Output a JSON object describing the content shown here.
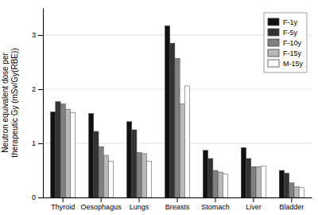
{
  "chart_data": {
    "type": "bar",
    "categories": [
      "Thyroid",
      "Oesophagus",
      "Lungs",
      "Breasts",
      "Stomach",
      "Liver",
      "Bladder"
    ],
    "series": [
      {
        "name": "F-1y",
        "color": "#111111",
        "values": [
          1.58,
          1.55,
          1.4,
          3.17,
          0.87,
          0.92,
          0.5
        ]
      },
      {
        "name": "F-5y",
        "color": "#333333",
        "values": [
          1.77,
          1.22,
          1.25,
          2.85,
          0.72,
          0.72,
          0.45
        ]
      },
      {
        "name": "F-10y",
        "color": "#808080",
        "values": [
          1.73,
          0.94,
          0.83,
          2.57,
          0.5,
          0.57,
          0.27
        ]
      },
      {
        "name": "F-15y",
        "color": "#b8b8b8",
        "values": [
          1.63,
          0.78,
          0.81,
          1.73,
          0.47,
          0.57,
          0.2
        ]
      },
      {
        "name": "M-15y",
        "color": "#ffffff",
        "values": [
          1.57,
          0.67,
          0.67,
          2.06,
          0.43,
          0.58,
          0.18
        ]
      }
    ],
    "ylabel": "Neutron equivalent dose per\ntherapeutic Gy (mSv/Gy(RBE))",
    "ylim": [
      0,
      3.5
    ],
    "yticks": [
      0,
      1,
      2,
      3
    ],
    "grid": true,
    "legend": "upper right"
  }
}
